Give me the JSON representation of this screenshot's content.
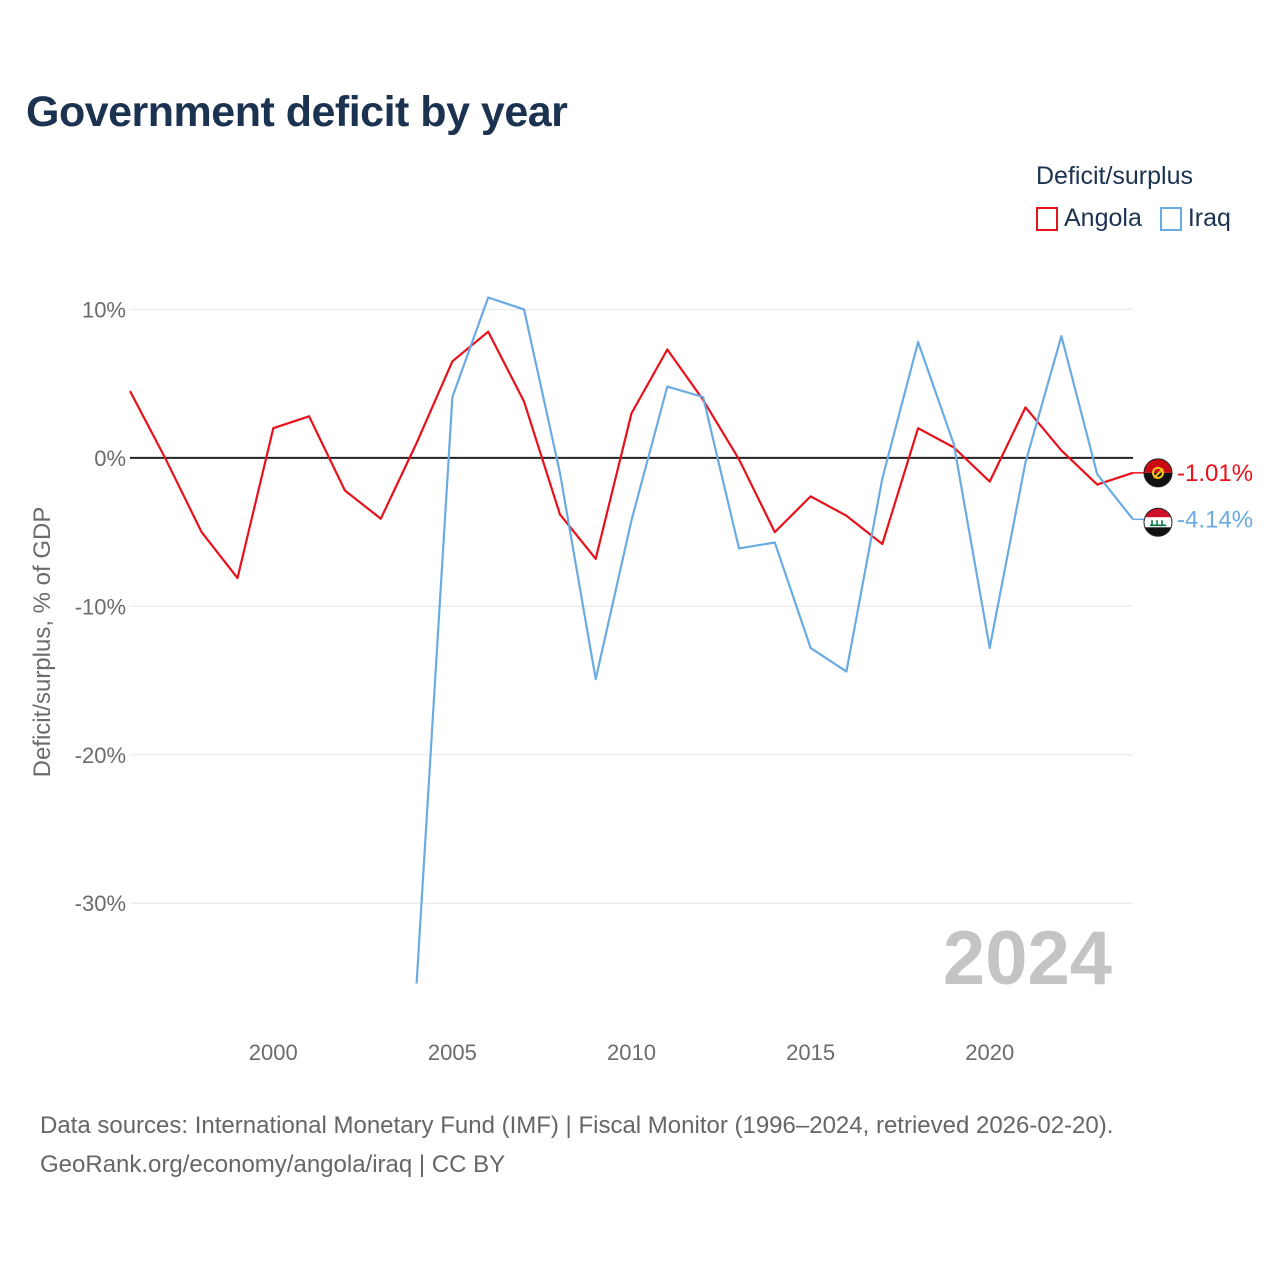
{
  "colors": {
    "angola": "#e8101a",
    "iraq": "#6aabe2",
    "title": "#1b3250",
    "zero_line": "#222222",
    "grid": "#e6e6e6"
  },
  "chart_data": {
    "type": "line",
    "title": "Government deficit by year",
    "ylabel": "Deficit/surplus, % of GDP",
    "xlabel": "",
    "xlim": [
      1996,
      2024
    ],
    "ylim": [
      -38,
      14
    ],
    "x_ticks": [
      2000,
      2005,
      2010,
      2015,
      2020
    ],
    "x_tick_labels": [
      "2000",
      "2005",
      "2010",
      "2015",
      "2020"
    ],
    "y_ticks": [
      10,
      0,
      -10,
      -20,
      -30
    ],
    "y_tick_labels": [
      "10%",
      "0%",
      "-10%",
      "-20%",
      "-30%"
    ],
    "legend_title": "Deficit/surplus",
    "legend_position": "top-right",
    "current_year": "2024",
    "series": [
      {
        "name": "Angola",
        "x": [
          1996,
          1997,
          1998,
          1999,
          2000,
          2001,
          2002,
          2003,
          2004,
          2005,
          2006,
          2007,
          2008,
          2009,
          2010,
          2011,
          2012,
          2013,
          2014,
          2015,
          2016,
          2017,
          2018,
          2019,
          2020,
          2021,
          2022,
          2023,
          2024
        ],
        "values": [
          4.5,
          -0.1,
          -5.0,
          -8.1,
          2.0,
          2.8,
          -2.2,
          -4.1,
          1.0,
          6.5,
          8.5,
          3.8,
          -3.8,
          -6.8,
          3.0,
          7.3,
          3.9,
          -0.1,
          -5.0,
          -2.6,
          -3.9,
          -5.8,
          2.0,
          0.7,
          -1.6,
          3.4,
          0.5,
          -1.8,
          -1.01
        ],
        "end_label": "-1.01%"
      },
      {
        "name": "Iraq",
        "x": [
          2004,
          2005,
          2006,
          2007,
          2008,
          2009,
          2010,
          2011,
          2012,
          2013,
          2014,
          2015,
          2016,
          2017,
          2018,
          2019,
          2020,
          2021,
          2022,
          2023,
          2024
        ],
        "values": [
          -35.4,
          4.1,
          10.8,
          10.0,
          -1.0,
          -14.9,
          -4.2,
          4.8,
          4.1,
          -6.1,
          -5.7,
          -12.8,
          -14.4,
          -1.4,
          7.8,
          0.9,
          -12.8,
          -0.3,
          8.2,
          -1.1,
          -4.14
        ],
        "end_label": "-4.14%"
      }
    ]
  },
  "source": {
    "line1": "Data sources: International Monetary Fund (IMF) | Fiscal Monitor (1996–2024, retrieved 2026-02-20).",
    "line2": "GeoRank.org/economy/angola/iraq | CC BY"
  }
}
